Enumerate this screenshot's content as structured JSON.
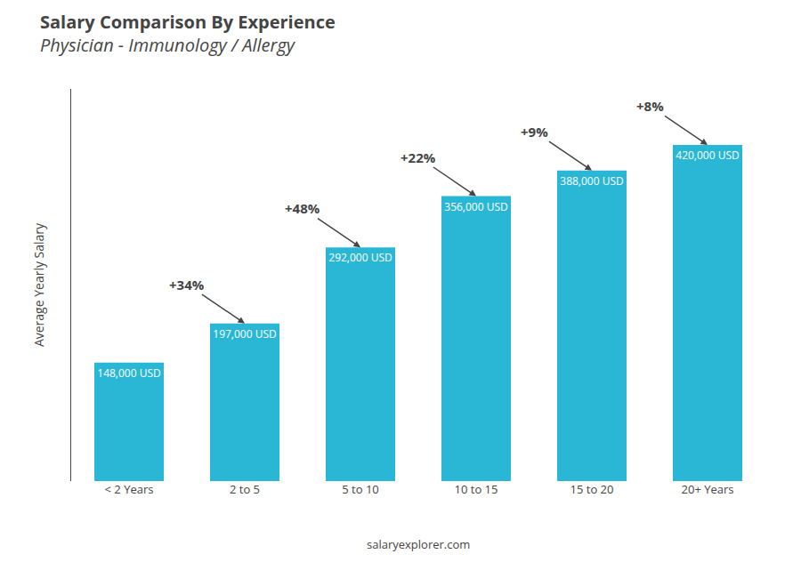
{
  "chart_data": {
    "type": "bar",
    "title": "Salary Comparison By Experience",
    "subtitle": "Physician - Immunology / Allergy",
    "categories": [
      "< 2 Years",
      "2 to 5",
      "5 to 10",
      "10 to 15",
      "15 to 20",
      "20+ Years"
    ],
    "values": [
      148000,
      197000,
      292000,
      356000,
      388000,
      420000
    ],
    "value_labels": [
      "148,000 USD",
      "197,000 USD",
      "292,000 USD",
      "356,000 USD",
      "388,000 USD",
      "420,000 USD"
    ],
    "data_labels": true,
    "color": "#2ab7d6",
    "ylim": [
      0,
      490000
    ],
    "ylabel": "Average Yearly Salary",
    "annotations": [
      "+34%",
      "+48%",
      "+22%",
      "+9%",
      "+8%"
    ],
    "footer": "salaryexplorer.com",
    "tick_labels": "x",
    "grid": false
  }
}
